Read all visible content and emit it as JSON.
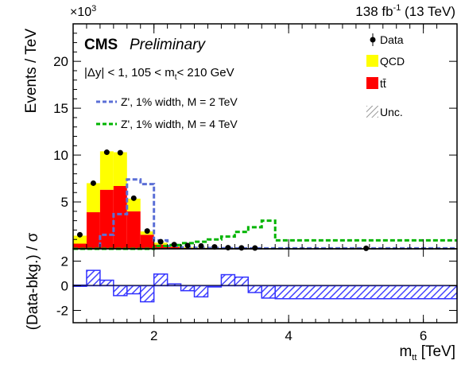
{
  "chart_data": [
    {
      "type": "bar",
      "panel": "main",
      "title": "CMS",
      "subtitle": "Preliminary",
      "lumi": "138 fb",
      "lumi_sup": "-1",
      "lumi_tail": " (13 TeV)",
      "ylabel": "Events / TeV",
      "exponent_base": "×10",
      "exponent_sup": "3",
      "y_scale": 1000,
      "selection": {
        "part1": "|Δy| < 1, 105 < m",
        "sub": "t",
        "part2": "< 210 GeV"
      },
      "xlim": [
        0.8,
        6.5
      ],
      "ylim": [
        0,
        24
      ],
      "yticks": [
        5,
        10,
        15,
        20
      ],
      "legend_position": "top-right",
      "legend": {
        "data": "Data",
        "qcd": "QCD",
        "ttbar": "tt̄",
        "unc": "Unc."
      },
      "colors": {
        "qcd": "#ffff00",
        "ttbar": "#ff0000",
        "z2": "#5b6fd6",
        "z4": "#00b400",
        "unc": "#5555ff",
        "data": "#000000"
      },
      "bin_edges": [
        0.8,
        1.0,
        1.2,
        1.4,
        1.6,
        1.8,
        2.0,
        2.2,
        2.4,
        2.6,
        2.8,
        3.0,
        3.2,
        3.4,
        3.6,
        3.8,
        6.5
      ],
      "series": [
        {
          "name": "tt̄",
          "values": [
            0.55,
            3.9,
            6.3,
            6.7,
            4.0,
            1.5,
            0.45,
            0.2,
            0.1,
            0.07,
            0.05,
            0.04,
            0.03,
            0.02,
            0.02,
            0.01
          ]
        },
        {
          "name": "QCD",
          "values": [
            0.85,
            3.1,
            4.1,
            3.6,
            1.35,
            0.35,
            0.2,
            0.12,
            0.08,
            0.05,
            0.04,
            0.03,
            0.02,
            0.02,
            0.01,
            0.01
          ]
        },
        {
          "name": "Data",
          "x": [
            0.9,
            1.1,
            1.3,
            1.5,
            1.7,
            1.9,
            2.1,
            2.3,
            2.5,
            2.7,
            2.9,
            3.1,
            3.3,
            3.5,
            5.15
          ],
          "values": [
            1.5,
            7.0,
            10.3,
            10.25,
            5.4,
            1.9,
            0.75,
            0.45,
            0.35,
            0.3,
            0.2,
            0.12,
            0.1,
            0.08,
            0.05
          ]
        },
        {
          "name": "Z', 1% width, M = 2 TeV",
          "values": [
            0.0,
            0.0,
            1.5,
            3.7,
            7.4,
            6.9,
            0.9,
            0.3,
            0.15,
            0.1,
            0.08,
            0.06,
            0.05,
            0.05,
            0.05,
            0.05
          ]
        },
        {
          "name": "Z', 1% width, M = 4 TeV",
          "values": [
            0.0,
            0.0,
            0.0,
            0.0,
            0.0,
            0.0,
            0.3,
            0.4,
            0.6,
            0.75,
            1.0,
            1.3,
            1.8,
            2.3,
            3.0,
            0.9
          ]
        }
      ]
    },
    {
      "type": "bar",
      "panel": "ratio",
      "xlabel": "m",
      "xlabel_sub": "tt",
      "xlabel_unit": " [TeV]",
      "ylabel": "(Data-bkg.) / σ",
      "ylim": [
        -3,
        3
      ],
      "yticks": [
        -2,
        0,
        2
      ],
      "xticks": [
        2,
        4,
        6
      ],
      "bin_edges": [
        0.8,
        1.0,
        1.2,
        1.4,
        1.6,
        1.8,
        2.0,
        2.2,
        2.4,
        2.6,
        2.8,
        3.0,
        3.2,
        3.4,
        3.6,
        3.8,
        6.5
      ],
      "values": [
        0.05,
        1.25,
        0.45,
        -0.8,
        -0.65,
        -1.3,
        0.95,
        0.15,
        -0.4,
        -0.9,
        0.0,
        0.9,
        0.7,
        -0.55,
        -1.0,
        -1.05
      ]
    }
  ]
}
